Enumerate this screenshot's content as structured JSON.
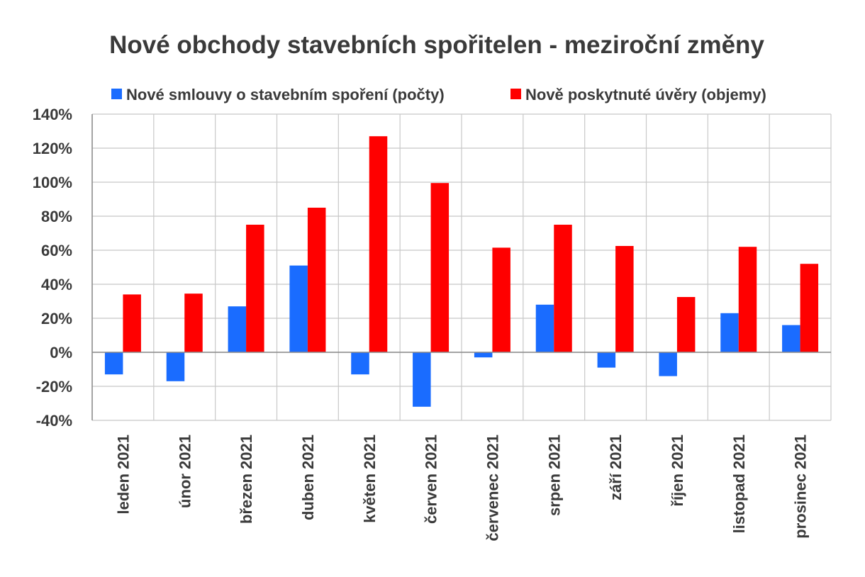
{
  "chart_data": {
    "type": "bar",
    "title": "Nové obchody stavebních spořitelen - meziroční změny",
    "categories": [
      "leden 2021",
      "únor 2021",
      "březen 2021",
      "duben 2021",
      "květen 2021",
      "červen 2021",
      "červenec 2021",
      "srpen 2021",
      "září 2021",
      "říjen 2021",
      "listopad 2021",
      "prosinec 2021"
    ],
    "series": [
      {
        "name": "Nové smlouvy o stavebním spoření (počty)",
        "color": "#1a6cff",
        "values": [
          -13,
          -17,
          27,
          51,
          -13,
          -32,
          -3,
          28,
          -9,
          -14,
          23,
          16
        ]
      },
      {
        "name": "Nově poskytnuté úvěry (objemy)",
        "color": "#ff0000",
        "values": [
          34,
          34.5,
          75,
          85,
          127,
          99.5,
          61.5,
          75,
          62.5,
          32.5,
          62,
          52
        ]
      }
    ],
    "ylim": [
      -40,
      140
    ],
    "yticks": [
      "140%",
      "120%",
      "100%",
      "80%",
      "60%",
      "40%",
      "20%",
      "0%",
      "-20%",
      "-40%"
    ],
    "ytick_values": [
      140,
      120,
      100,
      80,
      60,
      40,
      20,
      0,
      -20,
      -40
    ],
    "legend_position": "top",
    "grid": true
  }
}
